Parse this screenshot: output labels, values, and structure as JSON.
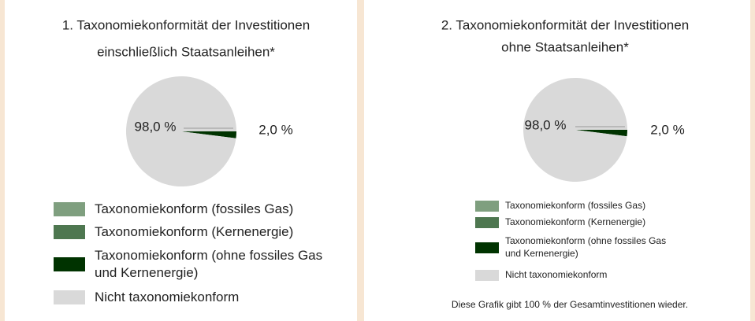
{
  "chart_data": [
    {
      "type": "pie",
      "title": [
        "1. Taxonomiekonformität der Investitionen",
        "einschließlich Staatsanleihen*"
      ],
      "categories": [
        "Taxonomiekonform (fossiles Gas)",
        "Taxonomiekonform (Kernenergie)",
        "Taxonomiekonform (ohne fossiles Gas und Kernenergie)",
        "Nicht taxonomiekonform"
      ],
      "values": [
        0,
        0,
        2.0,
        98.0
      ],
      "value_labels": [
        null,
        null,
        "2,0 %",
        "98,0 %"
      ],
      "colors": [
        "#7f9f7f",
        "#4e7750",
        "#003300",
        "#d9d9d9"
      ]
    },
    {
      "type": "pie",
      "title": [
        "2. Taxonomiekonformität der Investitionen",
        "ohne Staatsanleihen*"
      ],
      "categories": [
        "Taxonomiekonform (fossiles Gas)",
        "Taxonomiekonform (Kernenergie)",
        "Taxonomiekonform (ohne fossiles Gas und Kernenergie)",
        "Nicht taxonomiekonform"
      ],
      "values": [
        0,
        0,
        2.0,
        98.0
      ],
      "value_labels": [
        null,
        null,
        "2,0 %",
        "98,0 %"
      ],
      "colors": [
        "#7f9f7f",
        "#4e7750",
        "#003300",
        "#d9d9d9"
      ],
      "note": "Diese Grafik gibt 100 % der Gesamtinvestitionen wieder."
    }
  ]
}
